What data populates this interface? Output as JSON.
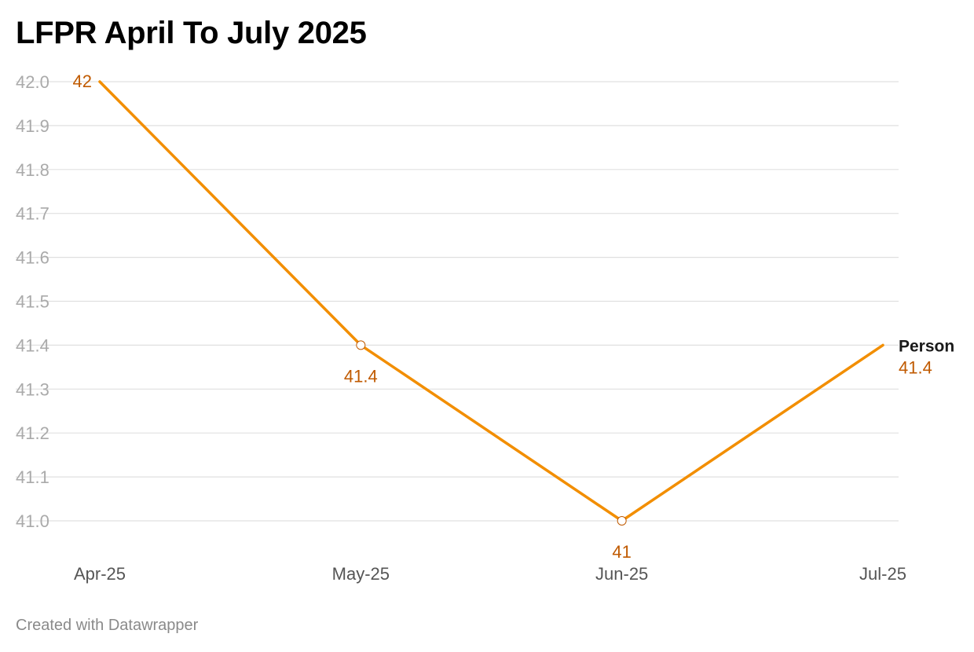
{
  "chart_data": {
    "type": "line",
    "title": "LFPR April To July 2025",
    "categories": [
      "Apr-25",
      "May-25",
      "Jun-25",
      "Jul-25"
    ],
    "series": [
      {
        "name": "Person",
        "values": [
          42,
          41.4,
          41,
          41.4
        ]
      }
    ],
    "y_ticks": [
      "42.0",
      "41.9",
      "41.8",
      "41.7",
      "41.6",
      "41.5",
      "41.4",
      "41.3",
      "41.2",
      "41.1",
      "41.0"
    ],
    "data_labels": [
      "42",
      "41.4",
      "41",
      "41.4"
    ],
    "ylim": [
      41.0,
      42.0
    ],
    "grid": true,
    "xlabel": "",
    "ylabel": ""
  },
  "footer": "Created with Datawrapper",
  "colors": {
    "line": "#f28e00",
    "label": "#c05a00",
    "grid": "#e0e0e0"
  }
}
